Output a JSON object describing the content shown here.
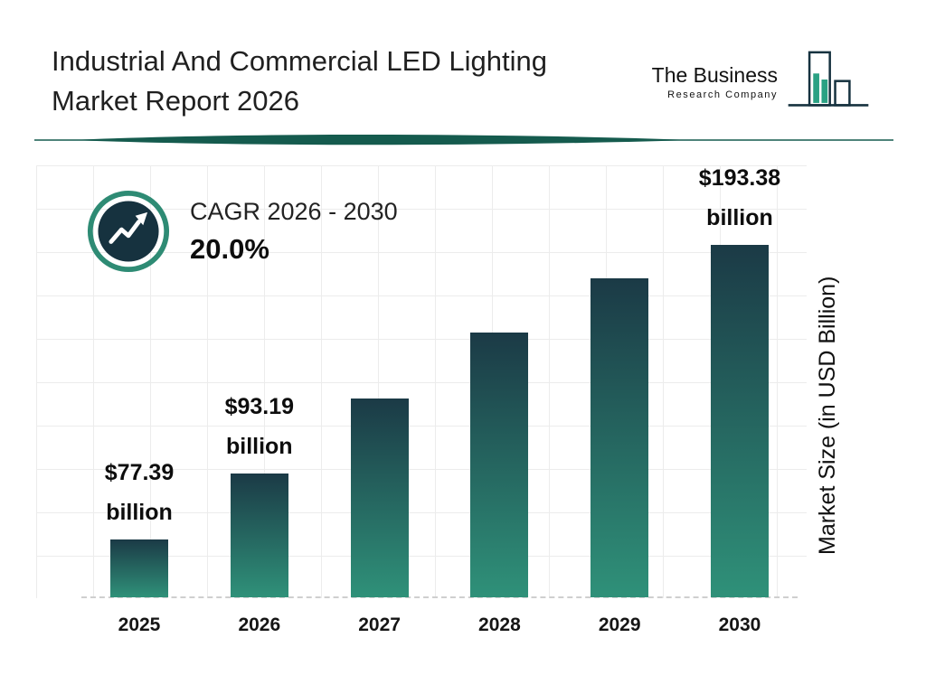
{
  "header": {
    "title_line1": "Industrial And Commercial LED Lighting",
    "title_line2": "Market Report 2026"
  },
  "logo": {
    "line1": "The Business",
    "line2": "Research Company"
  },
  "cagr": {
    "label": "CAGR 2026 - 2030",
    "value": "20.0%"
  },
  "chart_data": {
    "type": "bar",
    "title": "Industrial And Commercial LED Lighting Market Report 2026",
    "categories": [
      "2025",
      "2026",
      "2027",
      "2028",
      "2029",
      "2030"
    ],
    "values": [
      77.39,
      93.19,
      111.83,
      134.19,
      161.03,
      193.38
    ],
    "unit": "USD Billion",
    "ylabel": "Market Size (in USD Billion)",
    "xlabel": "",
    "grid": true,
    "baseline_style": "dashed",
    "legend": "none",
    "bar_heights_pct": [
      16.5,
      35,
      56.5,
      75,
      90.5,
      100
    ],
    "annotations": [
      {
        "category": "2025",
        "line1": "$77.39",
        "line2": "billion"
      },
      {
        "category": "2026",
        "line1": "$93.19",
        "line2": "billion"
      },
      {
        "category": "2030",
        "line1": "$193.38",
        "line2": "billion"
      }
    ]
  },
  "colors": {
    "teal": "#2E8B74",
    "navy": "#16323F",
    "bar_top": "#1B3A46",
    "bar_bottom": "#2F9179",
    "divider": "#155B4E",
    "grid": "#ECECEC"
  }
}
